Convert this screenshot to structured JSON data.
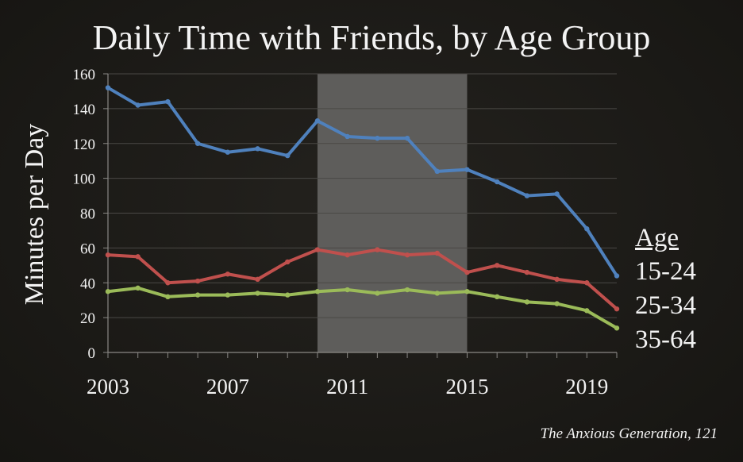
{
  "chart_data": {
    "type": "line",
    "title": "Daily Time with Friends, by Age Group",
    "ylabel": "Minutes per Day",
    "ylim": [
      0,
      160
    ],
    "y_ticks": [
      "0",
      "20",
      "40",
      "60",
      "80",
      "100",
      "120",
      "140",
      "160"
    ],
    "xlim": [
      2003,
      2020
    ],
    "x_ticks": [
      "2003",
      "2007",
      "2011",
      "2015",
      "2019"
    ],
    "highlight_range": [
      2010,
      2015
    ],
    "legend_title": "Age",
    "legend_placement": "right",
    "x": [
      2003,
      2004,
      2005,
      2006,
      2007,
      2008,
      2009,
      2010,
      2011,
      2012,
      2013,
      2014,
      2015,
      2016,
      2017,
      2018,
      2019,
      2020
    ],
    "series": [
      {
        "name": "15-24",
        "color": "#4f81bd",
        "values": [
          152,
          142,
          144,
          120,
          115,
          117,
          113,
          133,
          124,
          123,
          123,
          104,
          105,
          98,
          90,
          91,
          71,
          44
        ]
      },
      {
        "name": "25-34",
        "color": "#c0504d",
        "values": [
          56,
          55,
          40,
          41,
          45,
          42,
          52,
          59,
          56,
          59,
          56,
          57,
          46,
          50,
          46,
          42,
          40,
          25
        ]
      },
      {
        "name": "35-64",
        "color": "#9bbb59",
        "values": [
          35,
          37,
          32,
          33,
          33,
          34,
          33,
          35,
          36,
          34,
          36,
          34,
          35,
          32,
          29,
          28,
          24,
          14
        ]
      }
    ],
    "source": "The Anxious Generation, 121"
  }
}
